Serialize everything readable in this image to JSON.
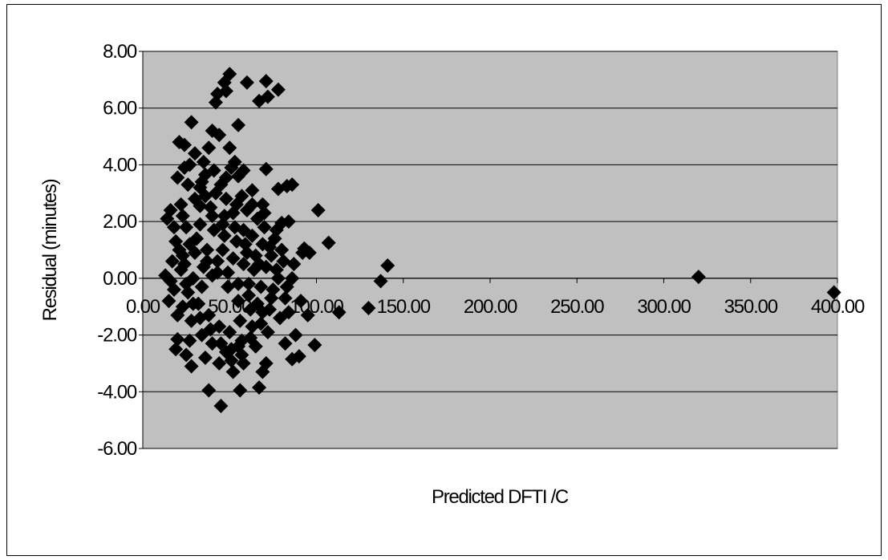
{
  "chart_data": {
    "type": "scatter",
    "title": "",
    "xlabel": "Predicted DFTI /C",
    "ylabel": "Residual (minutes)",
    "xlim": [
      0,
      400
    ],
    "ylim": [
      -6,
      8
    ],
    "x_ticks": [
      "0.00",
      "50.00",
      "100.00",
      "150.00",
      "200.00",
      "250.00",
      "300.00",
      "350.00",
      "400.00"
    ],
    "y_ticks": [
      "8.00",
      "6.00",
      "4.00",
      "2.00",
      "0.00",
      "-2.00",
      "-4.00",
      "-6.00"
    ],
    "grid": "horizontal",
    "legend": "none",
    "colors": {
      "plot_background": "#c0c0c0",
      "marker": "#000000",
      "gridline": "#000000"
    },
    "marker": "diamond",
    "series": [
      {
        "values": [
          [
            50,
            7.2
          ],
          [
            47,
            6.9
          ],
          [
            60,
            6.9
          ],
          [
            71,
            6.95
          ],
          [
            78,
            6.65
          ],
          [
            43,
            6.5
          ],
          [
            48,
            6.6
          ],
          [
            42,
            6.2
          ],
          [
            67,
            6.25
          ],
          [
            72,
            6.4
          ],
          [
            28,
            5.5
          ],
          [
            55,
            5.4
          ],
          [
            21,
            4.8
          ],
          [
            40,
            5.2
          ],
          [
            44,
            5.05
          ],
          [
            24,
            4.7
          ],
          [
            30,
            4.4
          ],
          [
            38,
            4.6
          ],
          [
            50,
            4.6
          ],
          [
            53,
            4.1
          ],
          [
            24,
            3.9
          ],
          [
            20,
            3.55
          ],
          [
            36,
            3.65
          ],
          [
            48,
            3.55
          ],
          [
            55,
            3.6
          ],
          [
            58,
            3.8
          ],
          [
            71,
            3.85
          ],
          [
            78,
            3.15
          ],
          [
            83,
            3.25
          ],
          [
            86,
            3.3
          ],
          [
            33,
            3.2
          ],
          [
            63,
            3.1
          ],
          [
            101,
            2.4
          ],
          [
            92,
            0.9
          ],
          [
            107,
            1.25
          ],
          [
            70,
            2.3
          ],
          [
            80,
            1.95
          ],
          [
            84,
            2.0
          ],
          [
            86,
            0.0
          ],
          [
            91,
            -0.8
          ],
          [
            80,
            1.0
          ],
          [
            93,
            1.05
          ],
          [
            113,
            -1.2
          ],
          [
            130,
            -1.05
          ],
          [
            137,
            -0.1
          ],
          [
            141,
            0.45
          ],
          [
            320,
            0.05
          ],
          [
            398,
            -0.5
          ],
          [
            99,
            -2.35
          ],
          [
            86,
            -2.85
          ],
          [
            90,
            -2.75
          ],
          [
            82,
            -2.3
          ],
          [
            71,
            -3.0
          ],
          [
            69,
            -3.3
          ],
          [
            67,
            -3.85
          ],
          [
            56,
            -3.95
          ],
          [
            52,
            -3.3
          ],
          [
            58,
            -3.0
          ],
          [
            45,
            -4.5
          ],
          [
            38,
            -3.95
          ],
          [
            28,
            -3.1
          ],
          [
            25,
            -2.7
          ],
          [
            20,
            -2.15
          ],
          [
            19,
            -2.5
          ],
          [
            15,
            -0.8
          ],
          [
            13,
            0.1
          ],
          [
            14,
            2.1
          ],
          [
            16,
            2.4
          ],
          [
            22,
            2.6
          ],
          [
            33,
            2.55
          ],
          [
            40,
            2.2
          ],
          [
            46,
            1.9
          ],
          [
            52,
            2.3
          ],
          [
            58,
            1.7
          ],
          [
            63,
            1.5
          ],
          [
            69,
            1.2
          ],
          [
            74,
            0.8
          ],
          [
            77,
            0.3
          ],
          [
            75,
            -0.4
          ],
          [
            73,
            -1.1
          ],
          [
            68,
            -1.6
          ],
          [
            62,
            -2.1
          ],
          [
            55,
            -2.4
          ],
          [
            48,
            -2.6
          ],
          [
            40,
            -2.3
          ],
          [
            34,
            -2.0
          ],
          [
            28,
            -1.5
          ],
          [
            23,
            -1.0
          ],
          [
            18,
            -0.4
          ],
          [
            17,
            0.6
          ],
          [
            19,
            1.3
          ],
          [
            25,
            1.8
          ],
          [
            31,
            1.4
          ],
          [
            37,
            1.0
          ],
          [
            43,
            0.6
          ],
          [
            49,
            0.2
          ],
          [
            55,
            -0.2
          ],
          [
            61,
            -0.6
          ],
          [
            66,
            -0.9
          ],
          [
            60,
            0.9
          ],
          [
            54,
            1.3
          ],
          [
            47,
            1.5
          ],
          [
            41,
            1.7
          ],
          [
            35,
            0.4
          ],
          [
            29,
            0.0
          ],
          [
            26,
            -0.5
          ],
          [
            32,
            -0.9
          ],
          [
            38,
            -1.3
          ],
          [
            44,
            -1.7
          ],
          [
            50,
            -1.9
          ],
          [
            56,
            -1.5
          ],
          [
            62,
            -1.1
          ],
          [
            68,
            -0.3
          ],
          [
            64,
            0.3
          ],
          [
            58,
            0.5
          ],
          [
            52,
            0.7
          ],
          [
            46,
            1.0
          ],
          [
            40,
            0.1
          ],
          [
            34,
            -0.3
          ],
          [
            30,
            0.9
          ],
          [
            22,
            0.3
          ],
          [
            20,
            -1.3
          ],
          [
            27,
            -2.2
          ],
          [
            36,
            -2.8
          ],
          [
            44,
            -3.0
          ],
          [
            51,
            -2.9
          ],
          [
            57,
            -2.7
          ],
          [
            65,
            -2.4
          ],
          [
            72,
            -1.9
          ],
          [
            79,
            -1.4
          ],
          [
            82,
            -0.7
          ],
          [
            78,
            0.0
          ],
          [
            81,
            0.6
          ],
          [
            76,
            1.4
          ],
          [
            70,
            1.8
          ],
          [
            66,
            2.1
          ],
          [
            60,
            2.4
          ],
          [
            54,
            2.6
          ],
          [
            48,
            2.8
          ],
          [
            42,
            3.0
          ],
          [
            36,
            2.9
          ],
          [
            30,
            2.8
          ],
          [
            26,
            3.3
          ],
          [
            34,
            3.4
          ],
          [
            45,
            3.3
          ],
          [
            57,
            2.9
          ],
          [
            63,
            2.6
          ],
          [
            69,
            2.6
          ],
          [
            18,
            1.8
          ],
          [
            21,
            1.0
          ],
          [
            24,
            0.5
          ],
          [
            27,
            1.2
          ],
          [
            33,
            1.9
          ],
          [
            39,
            2.5
          ],
          [
            47,
            2.2
          ],
          [
            53,
            1.8
          ],
          [
            59,
            1.2
          ],
          [
            65,
            0.8
          ],
          [
            71,
            0.4
          ],
          [
            74,
            -0.7
          ],
          [
            69,
            -1.2
          ],
          [
            63,
            -1.7
          ],
          [
            57,
            -2.2
          ],
          [
            51,
            -2.5
          ],
          [
            45,
            -2.3
          ],
          [
            39,
            -1.8
          ],
          [
            33,
            -1.4
          ],
          [
            29,
            -0.9
          ],
          [
            25,
            -0.2
          ],
          [
            23,
            0.8
          ],
          [
            37,
            0.6
          ],
          [
            43,
            0.2
          ],
          [
            49,
            -0.3
          ],
          [
            55,
            -0.8
          ],
          [
            61,
            -0.2
          ],
          [
            67,
            0.5
          ],
          [
            73,
            1.1
          ],
          [
            77,
            1.7
          ],
          [
            84,
            -1.2
          ],
          [
            88,
            -2.0
          ],
          [
            95,
            -1.3
          ],
          [
            96,
            0.9
          ],
          [
            87,
            0.5
          ],
          [
            83,
            -0.3
          ],
          [
            35,
            4.1
          ],
          [
            41,
            3.8
          ],
          [
            51,
            3.9
          ],
          [
            27,
            4.0
          ],
          [
            23,
            2.2
          ],
          [
            16,
            -0.1
          ]
        ]
      }
    ]
  }
}
